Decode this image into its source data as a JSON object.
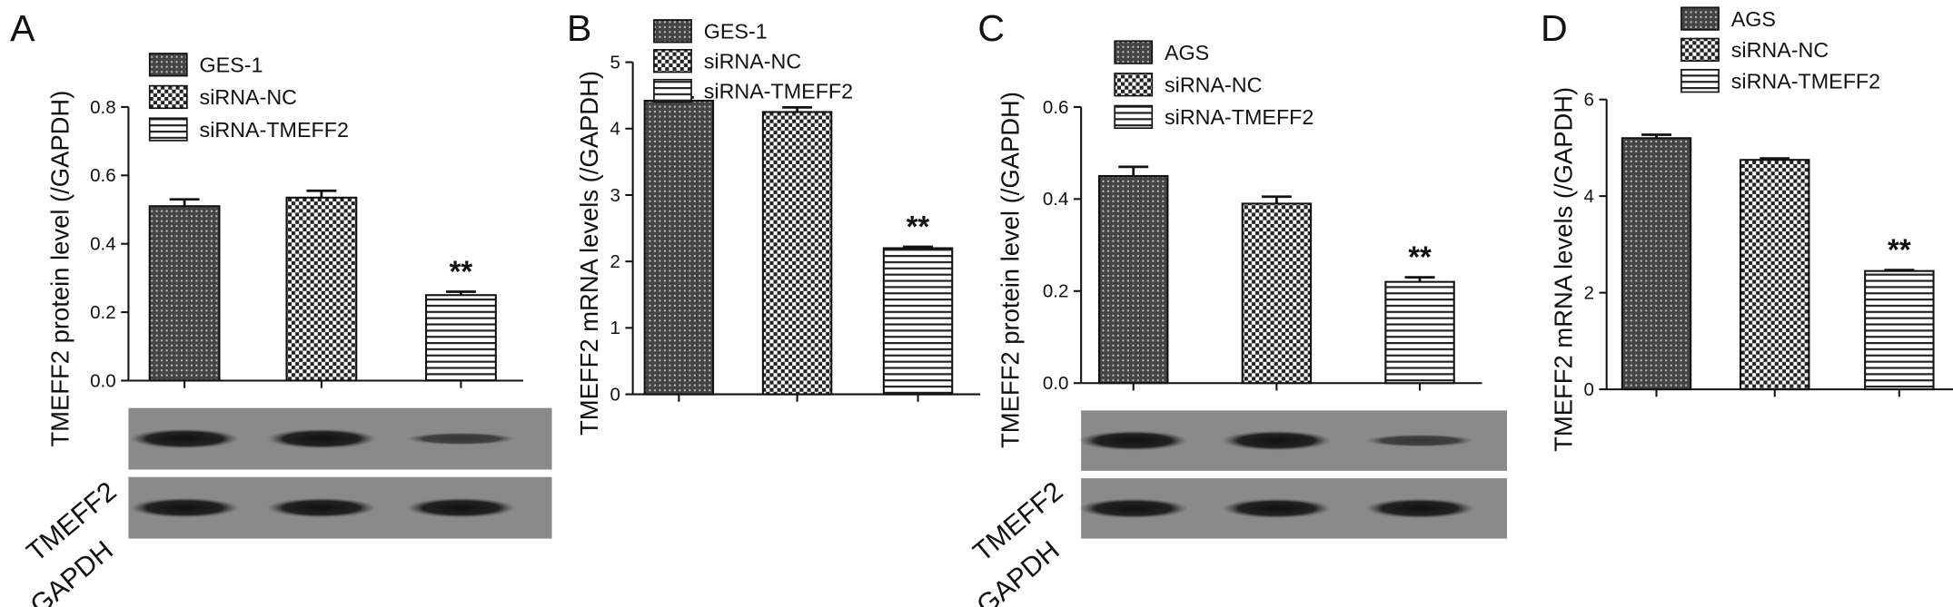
{
  "chart_data": [
    {
      "type": "bar",
      "panel": "A",
      "y_label": "TMEFF2 protein level (/GAPDH)",
      "annotation": "**",
      "blot_labels": [
        "TMEFF2",
        "GAPDH"
      ],
      "ylim": [
        0,
        0.8
      ],
      "yticks": [
        {
          "value": 0,
          "label": "0.0"
        },
        0.2,
        0.4,
        0.6,
        0.8
      ],
      "series": [
        {
          "name": "GES-1",
          "values": [
            0.51
          ],
          "errors": [
            0.02
          ],
          "pattern": "dots"
        },
        {
          "name": "siRNA-NC",
          "values": [
            0.535
          ],
          "errors": [
            0.02
          ],
          "pattern": "checker"
        },
        {
          "name": "siRNA-TMEFF2",
          "values": [
            0.25
          ],
          "errors": [
            0.01
          ],
          "pattern": "stripes"
        }
      ]
    },
    {
      "type": "bar",
      "panel": "B",
      "y_label": "TMEFF2 mRNA levels (/GAPDH)",
      "annotation": "**",
      "ylim": [
        0,
        5
      ],
      "yticks": [
        0,
        1,
        2,
        3,
        4,
        5
      ],
      "series": [
        {
          "name": "GES-1",
          "values": [
            4.42
          ],
          "errors": [
            0.05
          ],
          "pattern": "dots"
        },
        {
          "name": "siRNA-NC",
          "values": [
            4.25
          ],
          "errors": [
            0.07
          ],
          "pattern": "checker"
        },
        {
          "name": "siRNA-TMEFF2",
          "values": [
            2.2
          ],
          "errors": [
            0.02
          ],
          "pattern": "stripes"
        }
      ]
    },
    {
      "type": "bar",
      "panel": "C",
      "y_label": "TMEFF2 protein level (/GAPDH)",
      "annotation": "**",
      "blot_labels": [
        "TMEFF2",
        "GAPDH"
      ],
      "ylim": [
        0,
        0.6
      ],
      "yticks": [
        {
          "value": 0,
          "label": "0.0"
        },
        0.2,
        0.4,
        0.6
      ],
      "series": [
        {
          "name": "AGS",
          "values": [
            0.45
          ],
          "errors": [
            0.02
          ],
          "pattern": "dots"
        },
        {
          "name": "siRNA-NC",
          "values": [
            0.39
          ],
          "errors": [
            0.015
          ],
          "pattern": "checker"
        },
        {
          "name": "siRNA-TMEFF2",
          "values": [
            0.22
          ],
          "errors": [
            0.01
          ],
          "pattern": "stripes"
        }
      ]
    },
    {
      "type": "bar",
      "panel": "D",
      "y_label": "TMEFF2 mRNA levels (/GAPDH)",
      "annotation": "**",
      "ylim": [
        0,
        6
      ],
      "yticks": [
        0,
        2,
        4,
        6
      ],
      "series": [
        {
          "name": "AGS",
          "values": [
            5.2
          ],
          "errors": [
            0.07
          ],
          "pattern": "dots"
        },
        {
          "name": "siRNA-NC",
          "values": [
            4.75
          ],
          "errors": [
            0.03
          ],
          "pattern": "checker"
        },
        {
          "name": "siRNA-TMEFF2",
          "values": [
            2.45
          ],
          "errors": [
            0.02
          ],
          "pattern": "stripes"
        }
      ]
    }
  ]
}
